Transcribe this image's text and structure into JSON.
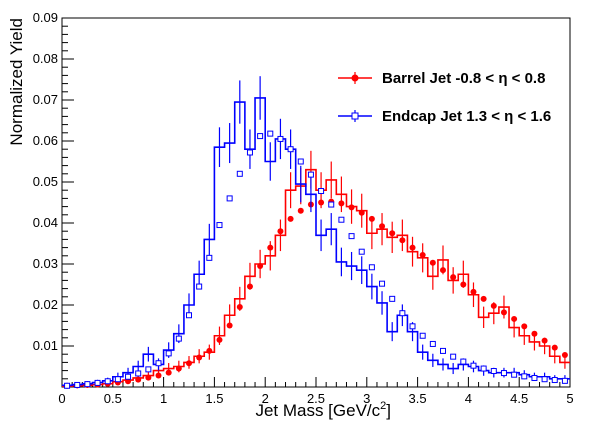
{
  "chart_data": {
    "type": "line",
    "title": "",
    "xlabel": "Jet Mass [GeV/c",
    "xlabel_sup": "2",
    "xlabel_close": "]",
    "ylabel": "Normalized Yield",
    "xlim": [
      0,
      5
    ],
    "ylim": [
      0,
      0.09
    ],
    "x_ticks": [
      "0",
      "0.5",
      "1",
      "1.5",
      "2",
      "2.5",
      "3",
      "3.5",
      "4",
      "4.5",
      "5"
    ],
    "y_ticks": [
      "0.01",
      "0.02",
      "0.03",
      "0.04",
      "0.05",
      "0.06",
      "0.07",
      "0.08",
      "0.09"
    ],
    "grid": false,
    "legend_position": "top-right",
    "series": [
      {
        "name": "Barrel Jet -0.8 < η < 0.8",
        "color": "#ff0000",
        "marker": "filled-circle",
        "x": [
          0.05,
          0.15,
          0.25,
          0.35,
          0.45,
          0.55,
          0.65,
          0.75,
          0.85,
          0.95,
          1.05,
          1.15,
          1.25,
          1.35,
          1.45,
          1.55,
          1.65,
          1.75,
          1.85,
          1.95,
          2.05,
          2.15,
          2.25,
          2.35,
          2.45,
          2.55,
          2.65,
          2.75,
          2.85,
          2.95,
          3.05,
          3.15,
          3.25,
          3.35,
          3.45,
          3.55,
          3.65,
          3.75,
          3.85,
          3.95,
          4.05,
          4.15,
          4.25,
          4.35,
          4.45,
          4.55,
          4.65,
          4.75,
          4.85,
          4.95
        ],
        "y": [
          0.0003,
          0.0004,
          0.0005,
          0.0006,
          0.0008,
          0.0011,
          0.0014,
          0.0018,
          0.0023,
          0.0028,
          0.0035,
          0.0045,
          0.0058,
          0.0072,
          0.0088,
          0.0115,
          0.015,
          0.0195,
          0.0245,
          0.0295,
          0.034,
          0.038,
          0.041,
          0.043,
          0.0445,
          0.045,
          0.0452,
          0.0448,
          0.0438,
          0.0425,
          0.041,
          0.0392,
          0.0375,
          0.0358,
          0.034,
          0.0322,
          0.0303,
          0.0285,
          0.0268,
          0.025,
          0.0232,
          0.0215,
          0.0198,
          0.0182,
          0.0166,
          0.0148,
          0.013,
          0.0113,
          0.0096,
          0.0078
        ],
        "hist_y": [
          0.0002,
          0.0003,
          0.0004,
          0.0006,
          0.0008,
          0.0013,
          0.0017,
          0.0022,
          0.0028,
          0.004,
          0.0045,
          0.005,
          0.006,
          0.0075,
          0.0085,
          0.0125,
          0.0175,
          0.0215,
          0.027,
          0.03,
          0.032,
          0.037,
          0.048,
          0.049,
          0.053,
          0.048,
          0.0505,
          0.047,
          0.044,
          0.043,
          0.0375,
          0.0385,
          0.0365,
          0.037,
          0.033,
          0.0315,
          0.027,
          0.031,
          0.026,
          0.0275,
          0.0225,
          0.017,
          0.018,
          0.0195,
          0.0145,
          0.0125,
          0.011,
          0.01,
          0.0075,
          0.006
        ]
      },
      {
        "name": "Endcap Jet 1.3 < η < 1.6",
        "color": "#0000ff",
        "marker": "open-square",
        "x": [
          0.05,
          0.15,
          0.25,
          0.35,
          0.45,
          0.55,
          0.65,
          0.75,
          0.85,
          0.95,
          1.05,
          1.15,
          1.25,
          1.35,
          1.45,
          1.55,
          1.65,
          1.75,
          1.85,
          1.95,
          2.05,
          2.15,
          2.25,
          2.35,
          2.45,
          2.55,
          2.65,
          2.75,
          2.85,
          2.95,
          3.05,
          3.15,
          3.25,
          3.35,
          3.45,
          3.55,
          3.65,
          3.75,
          3.85,
          3.95,
          4.05,
          4.15,
          4.25,
          4.35,
          4.45,
          4.55,
          4.65,
          4.75,
          4.85,
          4.95
        ],
        "y": [
          0.0003,
          0.0005,
          0.0007,
          0.001,
          0.0014,
          0.0019,
          0.0025,
          0.0033,
          0.0043,
          0.0058,
          0.0082,
          0.0118,
          0.0175,
          0.0245,
          0.0315,
          0.0395,
          0.046,
          0.052,
          0.0572,
          0.0612,
          0.0618,
          0.0605,
          0.058,
          0.055,
          0.0518,
          0.0478,
          0.0445,
          0.0408,
          0.0368,
          0.033,
          0.0292,
          0.0252,
          0.0215,
          0.018,
          0.0148,
          0.0125,
          0.0105,
          0.0088,
          0.0074,
          0.0062,
          0.0052,
          0.0045,
          0.0039,
          0.0034,
          0.003,
          0.0026,
          0.0022,
          0.0019,
          0.0017,
          0.0015
        ],
        "hist_y": [
          0.0004,
          0.0006,
          0.0008,
          0.0011,
          0.0015,
          0.0025,
          0.0035,
          0.005,
          0.008,
          0.0055,
          0.009,
          0.013,
          0.02,
          0.0275,
          0.036,
          0.0585,
          0.0595,
          0.0695,
          0.058,
          0.0705,
          0.055,
          0.0605,
          0.058,
          0.0495,
          0.047,
          0.037,
          0.0385,
          0.0305,
          0.0295,
          0.0285,
          0.0245,
          0.0205,
          0.0135,
          0.0175,
          0.0135,
          0.0085,
          0.0065,
          0.0055,
          0.0045,
          0.0055,
          0.005,
          0.004,
          0.0035,
          0.0035,
          0.0035,
          0.003,
          0.0025,
          0.0025,
          0.002,
          0.002
        ]
      }
    ]
  }
}
